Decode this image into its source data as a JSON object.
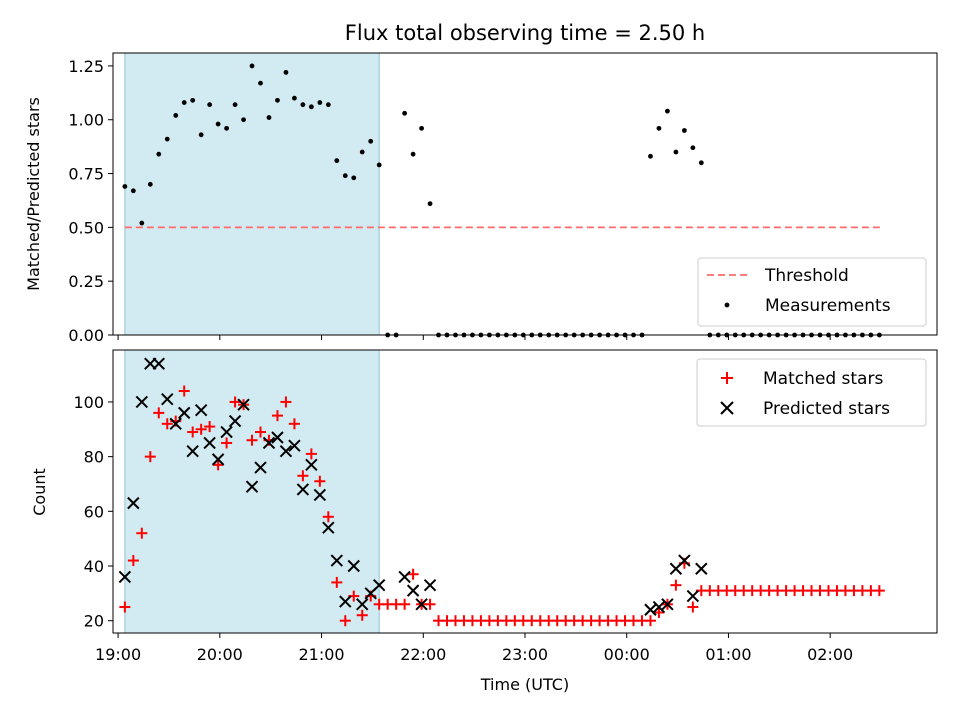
{
  "chart_data": [
    {
      "type": "scatter",
      "title": "Flux total observing time = 2.50 h",
      "ylabel": "Matched/Predicted stars",
      "xlabel": "",
      "ylim": [
        0,
        1.31
      ],
      "xlim": [
        "18:57",
        "03:03"
      ],
      "grid": false,
      "legend_position": "bottom-right",
      "shaded_interval": {
        "start": "19:04",
        "end": "21:34",
        "color": "#add8e6"
      },
      "y_ticks": [
        "0.00",
        "0.25",
        "0.50",
        "0.75",
        "1.00",
        "1.25"
      ],
      "threshold": {
        "name": "Threshold",
        "value": 0.5,
        "x_range": [
          "19:04",
          "02:30"
        ],
        "color": "#ff6b6b",
        "style": "dashed"
      },
      "series": [
        {
          "name": "Measurements",
          "color": "#000000",
          "marker": "dot",
          "x": [
            "19:04",
            "19:09",
            "19:14",
            "19:19",
            "19:24",
            "19:29",
            "19:34",
            "19:39",
            "19:44",
            "19:49",
            "19:54",
            "19:59",
            "20:04",
            "20:09",
            "20:14",
            "20:19",
            "20:24",
            "20:29",
            "20:34",
            "20:39",
            "20:44",
            "20:49",
            "20:54",
            "20:59",
            "21:04",
            "21:09",
            "21:14",
            "21:19",
            "21:24",
            "21:29",
            "21:34",
            "21:39",
            "21:44",
            "21:49",
            "21:54",
            "21:59",
            "22:04",
            "22:09",
            "22:14",
            "22:19",
            "22:24",
            "22:29",
            "22:34",
            "22:39",
            "22:44",
            "22:49",
            "22:54",
            "22:59",
            "23:04",
            "23:09",
            "23:14",
            "23:19",
            "23:24",
            "23:29",
            "23:34",
            "23:39",
            "23:44",
            "23:49",
            "23:54",
            "23:59",
            "00:04",
            "00:09",
            "00:14",
            "00:19",
            "00:24",
            "00:29",
            "00:34",
            "00:39",
            "00:44",
            "00:49",
            "00:54",
            "00:59",
            "01:04",
            "01:09",
            "01:14",
            "01:19",
            "01:24",
            "01:29",
            "01:34",
            "01:39",
            "01:44",
            "01:49",
            "01:54",
            "01:59",
            "02:04",
            "02:09",
            "02:14",
            "02:19",
            "02:24",
            "02:29"
          ],
          "y": [
            0.69,
            0.67,
            0.52,
            0.7,
            0.84,
            0.91,
            1.02,
            1.08,
            1.09,
            0.93,
            1.07,
            0.98,
            0.96,
            1.07,
            1.0,
            1.25,
            1.17,
            1.01,
            1.09,
            1.22,
            1.1,
            1.07,
            1.06,
            1.08,
            1.07,
            0.81,
            0.74,
            0.73,
            0.85,
            0.9,
            0.79,
            0.0,
            0.0,
            1.03,
            0.84,
            0.96,
            0.61,
            0.0,
            0.0,
            0.0,
            0.0,
            0.0,
            0.0,
            0.0,
            0.0,
            0.0,
            0.0,
            0.0,
            0.0,
            0.0,
            0.0,
            0.0,
            0.0,
            0.0,
            0.0,
            0.0,
            0.0,
            0.0,
            0.0,
            0.0,
            0.0,
            0.0,
            0.83,
            0.96,
            1.04,
            0.85,
            0.95,
            0.87,
            0.8,
            0.0,
            0.0,
            0.0,
            0.0,
            0.0,
            0.0,
            0.0,
            0.0,
            0.0,
            0.0,
            0.0,
            0.0,
            0.0,
            0.0,
            0.0,
            0.0,
            0.0,
            0.0,
            0.0,
            0.0,
            0.0
          ]
        }
      ]
    },
    {
      "type": "scatter",
      "title": "",
      "ylabel": "Count",
      "xlabel": "Time (UTC)",
      "ylim": [
        15.5,
        119
      ],
      "xlim": [
        "18:57",
        "03:03"
      ],
      "grid": false,
      "legend_position": "top-right",
      "shaded_interval": {
        "start": "19:04",
        "end": "21:34",
        "color": "#add8e6"
      },
      "x_ticks": [
        "19:00",
        "20:00",
        "21:00",
        "22:00",
        "23:00",
        "00:00",
        "01:00",
        "02:00"
      ],
      "y_ticks": [
        "20",
        "40",
        "60",
        "80",
        "100"
      ],
      "series": [
        {
          "name": "Matched stars",
          "color": "#ff0000",
          "marker": "plus",
          "x": [
            "19:04",
            "19:09",
            "19:14",
            "19:19",
            "19:24",
            "19:29",
            "19:34",
            "19:39",
            "19:44",
            "19:49",
            "19:54",
            "19:59",
            "20:04",
            "20:09",
            "20:14",
            "20:19",
            "20:24",
            "20:29",
            "20:34",
            "20:39",
            "20:44",
            "20:49",
            "20:54",
            "20:59",
            "21:04",
            "21:09",
            "21:14",
            "21:19",
            "21:24",
            "21:29",
            "21:34",
            "21:39",
            "21:44",
            "21:49",
            "21:54",
            "21:59",
            "22:04",
            "22:09",
            "22:14",
            "22:19",
            "22:24",
            "22:29",
            "22:34",
            "22:39",
            "22:44",
            "22:49",
            "22:54",
            "22:59",
            "23:04",
            "23:09",
            "23:14",
            "23:19",
            "23:24",
            "23:29",
            "23:34",
            "23:39",
            "23:44",
            "23:49",
            "23:54",
            "23:59",
            "00:04",
            "00:09",
            "00:14",
            "00:19",
            "00:24",
            "00:29",
            "00:34",
            "00:39",
            "00:44",
            "00:49",
            "00:54",
            "00:59",
            "01:04",
            "01:09",
            "01:14",
            "01:19",
            "01:24",
            "01:29",
            "01:34",
            "01:39",
            "01:44",
            "01:49",
            "01:54",
            "01:59",
            "02:04",
            "02:09",
            "02:14",
            "02:19",
            "02:24",
            "02:29"
          ],
          "y": [
            25,
            42,
            52,
            80,
            96,
            92,
            93,
            104,
            89,
            90,
            91,
            77,
            85,
            100,
            99,
            86,
            89,
            86,
            95,
            100,
            92,
            73,
            81,
            71,
            58,
            34,
            20,
            29,
            22,
            29,
            26,
            26,
            26,
            26,
            37,
            26,
            26,
            20,
            20,
            20,
            20,
            20,
            20,
            20,
            20,
            20,
            20,
            20,
            20,
            20,
            20,
            20,
            20,
            20,
            20,
            20,
            20,
            20,
            20,
            20,
            20,
            20,
            20,
            23,
            26,
            33,
            41,
            25,
            31,
            31,
            31,
            31,
            31,
            31,
            31,
            31,
            31,
            31,
            31,
            31,
            31,
            31,
            31,
            31,
            31,
            31,
            31,
            31,
            31,
            31
          ]
        },
        {
          "name": "Predicted stars",
          "color": "#000000",
          "marker": "x",
          "x": [
            "19:04",
            "19:09",
            "19:14",
            "19:19",
            "19:24",
            "19:29",
            "19:34",
            "19:39",
            "19:44",
            "19:49",
            "19:54",
            "19:59",
            "20:04",
            "20:09",
            "20:14",
            "20:19",
            "20:24",
            "20:29",
            "20:34",
            "20:39",
            "20:44",
            "20:49",
            "20:54",
            "20:59",
            "21:04",
            "21:09",
            "21:14",
            "21:19",
            "21:24",
            "21:29",
            "21:34",
            "21:49",
            "21:54",
            "21:59",
            "22:04",
            "00:14",
            "00:19",
            "00:24",
            "00:29",
            "00:34",
            "00:39",
            "00:44"
          ],
          "y": [
            36,
            63,
            100,
            114,
            114,
            101,
            92,
            96,
            82,
            97,
            85,
            79,
            89,
            93,
            99,
            69,
            76,
            85,
            87,
            82,
            84,
            68,
            77,
            66,
            54,
            42,
            27,
            40,
            26,
            30,
            33,
            36,
            31,
            26,
            33,
            24,
            25,
            26,
            39,
            42,
            29,
            39
          ]
        }
      ]
    }
  ]
}
